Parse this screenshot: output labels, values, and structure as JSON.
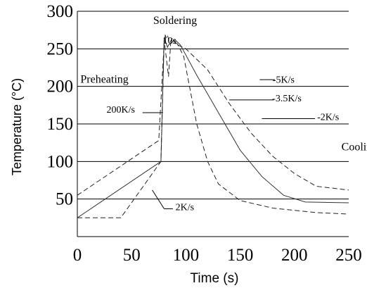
{
  "chart_data": {
    "type": "line",
    "xlabel": "Time (s)",
    "ylabel": "Temperature (°C)",
    "xlim": [
      0,
      250
    ],
    "ylim": [
      0,
      300
    ],
    "xticks": [
      0,
      50,
      100,
      150,
      200,
      250
    ],
    "yticks": [
      50,
      100,
      150,
      200,
      250,
      300
    ],
    "grid": "horizontal",
    "series": [
      {
        "style": "solid",
        "points": [
          [
            0,
            25
          ],
          [
            77,
            100
          ],
          [
            80,
            265
          ],
          [
            83,
            252
          ],
          [
            84,
            255
          ],
          [
            90,
            262
          ],
          [
            95,
            255
          ],
          [
            110,
            215
          ],
          [
            130,
            165
          ],
          [
            150,
            115
          ],
          [
            170,
            80
          ],
          [
            190,
            55
          ],
          [
            210,
            46
          ],
          [
            250,
            45
          ]
        ]
      },
      {
        "style": "dashed",
        "points": [
          [
            0,
            55
          ],
          [
            75,
            128
          ],
          [
            80,
            258
          ],
          [
            81,
            268
          ],
          [
            82,
            265
          ],
          [
            83,
            268
          ],
          [
            85,
            258
          ],
          [
            88,
            265
          ],
          [
            90,
            257
          ],
          [
            100,
            250
          ],
          [
            120,
            222
          ],
          [
            140,
            177
          ],
          [
            160,
            138
          ],
          [
            180,
            107
          ],
          [
            200,
            84
          ],
          [
            220,
            67
          ],
          [
            250,
            62
          ]
        ]
      },
      {
        "style": "dashed",
        "points": [
          [
            0,
            25
          ],
          [
            40,
            25
          ],
          [
            77,
            100
          ],
          [
            80,
            262
          ],
          [
            84,
            213
          ],
          [
            86,
            258
          ],
          [
            92,
            257
          ],
          [
            98,
            240
          ],
          [
            110,
            150
          ],
          [
            120,
            100
          ],
          [
            130,
            70
          ],
          [
            150,
            48
          ],
          [
            180,
            38
          ],
          [
            220,
            32
          ],
          [
            250,
            30
          ]
        ]
      }
    ],
    "annotations": [
      {
        "text": "Soldering",
        "x": 90,
        "y": 283
      },
      {
        "text": "10s",
        "x": 85,
        "y": 257
      },
      {
        "text": "Preheating",
        "x": 25,
        "y": 205
      },
      {
        "text": "200K/s",
        "x": 40,
        "y": 165
      },
      {
        "text": "-5K/s",
        "x": 190,
        "y": 205
      },
      {
        "text": "-3.5K/s",
        "x": 193,
        "y": 180
      },
      {
        "text": "-2K/s",
        "x": 231,
        "y": 155
      },
      {
        "text": "Cooling",
        "x": 260,
        "y": 115
      },
      {
        "text": "2K/s",
        "x": 99,
        "y": 35
      }
    ]
  }
}
